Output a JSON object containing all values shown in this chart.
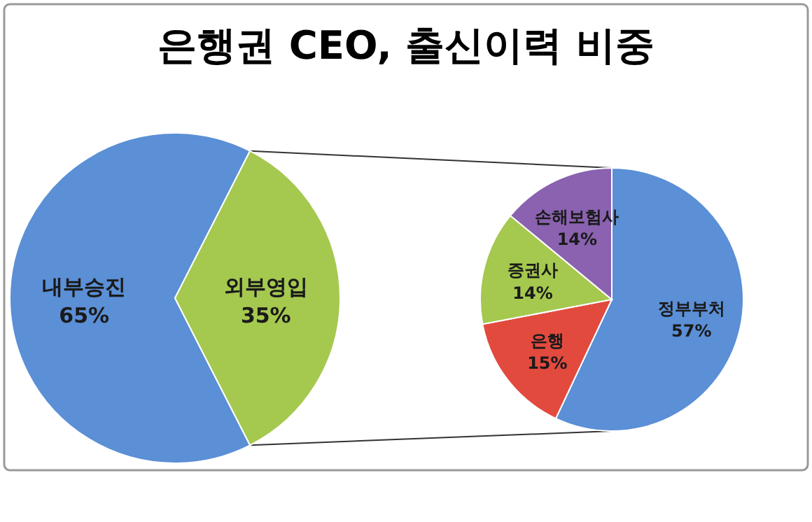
{
  "chart_data": [
    {
      "type": "pie",
      "title": "은행권 CEO, 출신이력 비중",
      "categories": [
        "내부승진",
        "외부영입"
      ],
      "values": [
        65,
        35
      ],
      "value_labels": [
        "65%",
        "35%"
      ],
      "colors": [
        "#5b8fd6",
        "#a5c84f"
      ]
    },
    {
      "type": "pie",
      "categories": [
        "정부부처",
        "은행",
        "증권사",
        "손해보험사"
      ],
      "values": [
        57,
        15,
        14,
        14
      ],
      "value_labels": [
        "57%",
        "15%",
        "14%",
        "14%"
      ],
      "colors": [
        "#5b8fd6",
        "#e24a3e",
        "#a5c84f",
        "#8a62b0"
      ]
    }
  ]
}
